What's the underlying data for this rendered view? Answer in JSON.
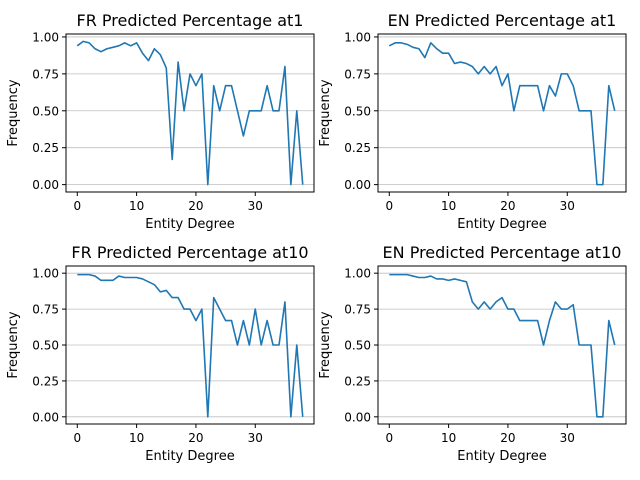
{
  "chart_data": [
    {
      "type": "line",
      "title": "FR Predicted Percentage at1",
      "xlabel": "Entity Degree",
      "ylabel": "Frequency",
      "xlim": [
        -1.9,
        39.9
      ],
      "ylim": [
        -0.05,
        1.02
      ],
      "xticks": [
        0,
        10,
        20,
        30
      ],
      "yticks": [
        0.0,
        0.25,
        0.5,
        0.75,
        1.0
      ],
      "ytick_labels": [
        "0.00",
        "0.25",
        "0.50",
        "0.75",
        "1.00"
      ],
      "grid": "y",
      "color": "#1f77b4",
      "x": [
        0,
        1,
        2,
        3,
        4,
        5,
        6,
        7,
        8,
        9,
        10,
        11,
        12,
        13,
        14,
        15,
        16,
        17,
        18,
        19,
        20,
        21,
        22,
        23,
        24,
        25,
        26,
        27,
        28,
        29,
        30,
        31,
        32,
        33,
        34,
        35,
        36,
        37,
        38
      ],
      "y": [
        0.94,
        0.97,
        0.96,
        0.92,
        0.9,
        0.92,
        0.93,
        0.94,
        0.96,
        0.94,
        0.96,
        0.89,
        0.84,
        0.92,
        0.88,
        0.79,
        0.17,
        0.83,
        0.5,
        0.75,
        0.67,
        0.75,
        0.0,
        0.67,
        0.5,
        0.67,
        0.67,
        0.5,
        0.33,
        0.5,
        0.5,
        0.5,
        0.67,
        0.5,
        0.5,
        0.8,
        0.0,
        0.5,
        0.0
      ]
    },
    {
      "type": "line",
      "title": "EN Predicted Percentage at1",
      "xlabel": "Entity Degree",
      "ylabel": "Frequency",
      "xlim": [
        -1.9,
        39.9
      ],
      "ylim": [
        -0.05,
        1.02
      ],
      "xticks": [
        0,
        10,
        20,
        30
      ],
      "yticks": [
        0.0,
        0.25,
        0.5,
        0.75,
        1.0
      ],
      "ytick_labels": [
        "0.00",
        "0.25",
        "0.50",
        "0.75",
        "1.00"
      ],
      "grid": "y",
      "color": "#1f77b4",
      "x": [
        0,
        1,
        2,
        3,
        4,
        5,
        6,
        7,
        8,
        9,
        10,
        11,
        12,
        13,
        14,
        15,
        16,
        17,
        18,
        19,
        20,
        21,
        22,
        23,
        24,
        25,
        26,
        27,
        28,
        29,
        30,
        31,
        32,
        33,
        34,
        35,
        36,
        37,
        38
      ],
      "y": [
        0.94,
        0.96,
        0.96,
        0.95,
        0.93,
        0.92,
        0.86,
        0.96,
        0.92,
        0.89,
        0.89,
        0.82,
        0.83,
        0.82,
        0.8,
        0.75,
        0.8,
        0.75,
        0.8,
        0.67,
        0.75,
        0.5,
        0.67,
        0.67,
        0.67,
        0.67,
        0.5,
        0.67,
        0.6,
        0.75,
        0.75,
        0.67,
        0.5,
        0.5,
        0.5,
        0.0,
        0.0,
        0.67,
        0.5
      ]
    },
    {
      "type": "line",
      "title": "FR Predicted Percentage at10",
      "xlabel": "Entity Degree",
      "ylabel": "Frequency",
      "xlim": [
        -1.9,
        39.9
      ],
      "ylim": [
        -0.05,
        1.05
      ],
      "xticks": [
        0,
        10,
        20,
        30
      ],
      "yticks": [
        0.0,
        0.25,
        0.5,
        0.75,
        1.0
      ],
      "ytick_labels": [
        "0.00",
        "0.25",
        "0.50",
        "0.75",
        "1.00"
      ],
      "grid": "y",
      "color": "#1f77b4",
      "x": [
        0,
        1,
        2,
        3,
        4,
        5,
        6,
        7,
        8,
        9,
        10,
        11,
        12,
        13,
        14,
        15,
        16,
        17,
        18,
        19,
        20,
        21,
        22,
        23,
        24,
        25,
        26,
        27,
        28,
        29,
        30,
        31,
        32,
        33,
        34,
        35,
        36,
        37,
        38
      ],
      "y": [
        0.99,
        0.99,
        0.99,
        0.98,
        0.95,
        0.95,
        0.95,
        0.98,
        0.97,
        0.97,
        0.97,
        0.96,
        0.94,
        0.92,
        0.87,
        0.88,
        0.83,
        0.83,
        0.75,
        0.75,
        0.67,
        0.75,
        0.0,
        0.83,
        0.75,
        0.67,
        0.67,
        0.5,
        0.67,
        0.5,
        0.75,
        0.5,
        0.67,
        0.5,
        0.5,
        0.8,
        0.0,
        0.5,
        0.0
      ]
    },
    {
      "type": "line",
      "title": "EN Predicted Percentage at10",
      "xlabel": "Entity Degree",
      "ylabel": "Frequency",
      "xlim": [
        -1.9,
        39.9
      ],
      "ylim": [
        -0.05,
        1.05
      ],
      "xticks": [
        0,
        10,
        20,
        30
      ],
      "yticks": [
        0.0,
        0.25,
        0.5,
        0.75,
        1.0
      ],
      "ytick_labels": [
        "0.00",
        "0.25",
        "0.50",
        "0.75",
        "1.00"
      ],
      "grid": "y",
      "color": "#1f77b4",
      "x": [
        0,
        1,
        2,
        3,
        4,
        5,
        6,
        7,
        8,
        9,
        10,
        11,
        12,
        13,
        14,
        15,
        16,
        17,
        18,
        19,
        20,
        21,
        22,
        23,
        24,
        25,
        26,
        27,
        28,
        29,
        30,
        31,
        32,
        33,
        34,
        35,
        36,
        37,
        38
      ],
      "y": [
        0.99,
        0.99,
        0.99,
        0.99,
        0.98,
        0.97,
        0.97,
        0.98,
        0.96,
        0.96,
        0.95,
        0.96,
        0.95,
        0.94,
        0.8,
        0.75,
        0.8,
        0.75,
        0.8,
        0.83,
        0.75,
        0.75,
        0.67,
        0.67,
        0.67,
        0.67,
        0.5,
        0.67,
        0.8,
        0.75,
        0.75,
        0.78,
        0.5,
        0.5,
        0.5,
        0.0,
        0.0,
        0.67,
        0.5
      ]
    }
  ]
}
